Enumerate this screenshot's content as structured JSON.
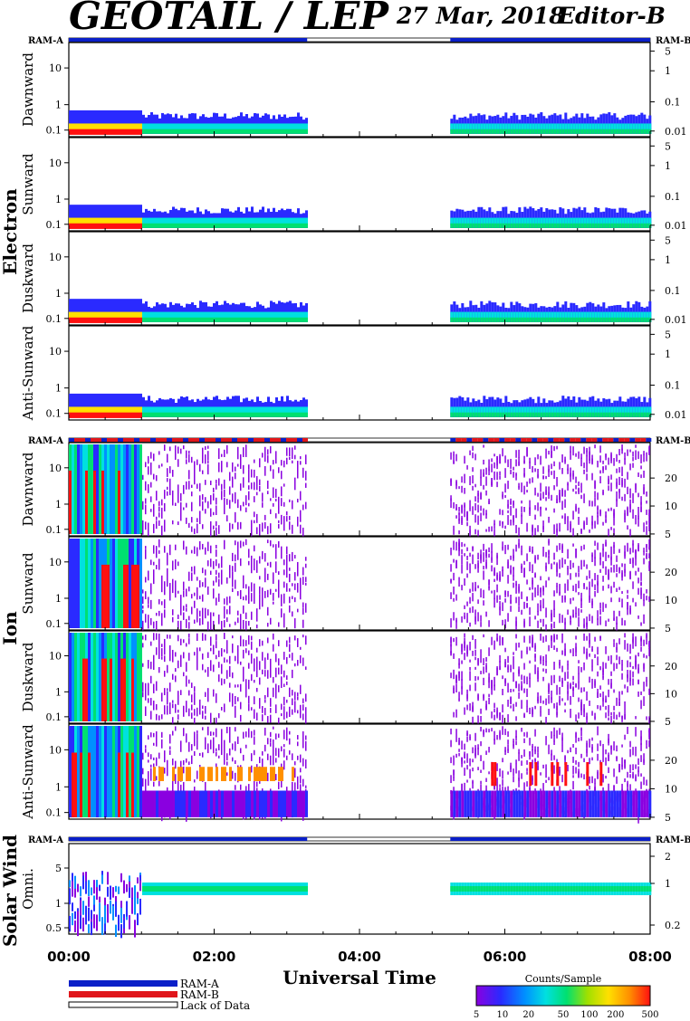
{
  "header": {
    "title": "GEOTAIL / LEP",
    "date": "27 Mar, 2018",
    "editor": "Editor-B"
  },
  "labels": {
    "ram_a": "RAM-A",
    "ram_b": "RAM-B",
    "group_electron": "Electron",
    "group_ion": "Ion",
    "group_solar_wind": "Solar Wind",
    "xlabel": "Universal Time"
  },
  "legend": {
    "ram_a": "RAM-A",
    "ram_b": "RAM-B",
    "lack": "Lack of Data",
    "colorbar_title": "Counts/Sample",
    "colorbar_ticks": [
      "5",
      "10",
      "20",
      "50",
      "100",
      "200",
      "500"
    ]
  },
  "colors": {
    "ram_a": "#0a1fc8",
    "ram_b": "#e0161b",
    "colormap": [
      "#8a00e0",
      "#2a2aff",
      "#0090ff",
      "#00e0e0",
      "#00e070",
      "#a0e000",
      "#ffe000",
      "#ff9000",
      "#ff1010"
    ]
  },
  "chart_data": {
    "type": "heatmap",
    "x_ticks": [
      "00:00",
      "02:00",
      "04:00",
      "06:00",
      "08:00"
    ],
    "x_range_hours": [
      0,
      8
    ],
    "data_coverage_hours": [
      [
        0.0,
        3.28
      ],
      [
        5.25,
        8.0
      ]
    ],
    "panels": [
      {
        "group": "Electron",
        "name": "Dawnward",
        "left_ticks": [
          "10",
          "1",
          "0.1"
        ],
        "right_ticks": [
          "5",
          "1",
          "0.1",
          "0.01"
        ]
      },
      {
        "group": "Electron",
        "name": "Sunward",
        "left_ticks": [
          "10",
          "1",
          "0.1"
        ],
        "right_ticks": [
          "5",
          "1",
          "0.1",
          "0.01"
        ]
      },
      {
        "group": "Electron",
        "name": "Duskward",
        "left_ticks": [
          "10",
          "1",
          "0.1"
        ],
        "right_ticks": [
          "5",
          "1",
          "0.1",
          "0.01"
        ]
      },
      {
        "group": "Electron",
        "name": "Anti-Sunward",
        "left_ticks": [
          "10",
          "1",
          "0.1"
        ],
        "right_ticks": [
          "5",
          "1",
          "0.1",
          "0.01"
        ]
      },
      {
        "group": "Ion",
        "name": "Dawnward",
        "left_ticks": [
          "10",
          "1",
          "0.1"
        ],
        "right_ticks": [
          "20",
          "10",
          "5"
        ]
      },
      {
        "group": "Ion",
        "name": "Sunward",
        "left_ticks": [
          "10",
          "1",
          "0.1"
        ],
        "right_ticks": [
          "20",
          "10",
          "5"
        ]
      },
      {
        "group": "Ion",
        "name": "Duskward",
        "left_ticks": [
          "10",
          "1",
          "0.1"
        ],
        "right_ticks": [
          "20",
          "10",
          "5"
        ]
      },
      {
        "group": "Ion",
        "name": "Anti-Sunward",
        "left_ticks": [
          "10",
          "1",
          "0.1"
        ],
        "right_ticks": [
          "20",
          "10",
          "5"
        ]
      },
      {
        "group": "Solar Wind",
        "name": "Omni.",
        "left_ticks": [
          "5",
          "1",
          "0.5"
        ],
        "right_ticks": [
          "2",
          "1",
          "0.2"
        ]
      }
    ]
  }
}
